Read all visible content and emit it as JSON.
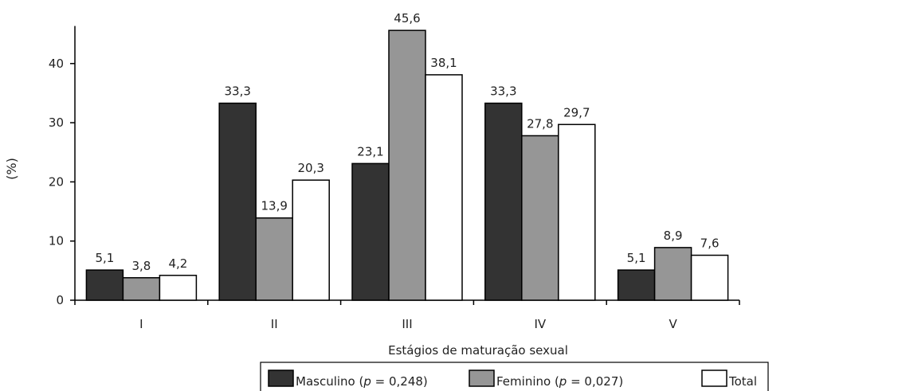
{
  "chart_data": {
    "type": "bar",
    "categories": [
      "I",
      "II",
      "III",
      "IV",
      "V"
    ],
    "series": [
      {
        "key": "masculino",
        "values": [
          5.1,
          33.3,
          23.1,
          33.3,
          5.1
        ],
        "color": "#333333"
      },
      {
        "key": "feminino",
        "values": [
          3.8,
          13.9,
          45.6,
          27.8,
          8.9
        ],
        "color": "#969696"
      },
      {
        "key": "total",
        "values": [
          4.2,
          20.3,
          38.1,
          29.7,
          7.6
        ],
        "color": "#ffffff"
      }
    ],
    "data_labels": [
      [
        "5,1",
        "33,3",
        "23,1",
        "33,3",
        "5,1"
      ],
      [
        "3,8",
        "13,9",
        "45,6",
        "27,8",
        "8,9"
      ],
      [
        "4,2",
        "20,3",
        "38,1",
        "29,7",
        "7,6"
      ]
    ],
    "xlabel": "Estágios de maturação sexual",
    "ylabel": "(%)",
    "ylim": [
      0,
      45
    ],
    "yticks": [
      0,
      10,
      20,
      30,
      40
    ],
    "grid": false,
    "legend": {
      "placement": "bottom-center",
      "items": [
        {
          "pre": "Masculino (",
          "var": "p",
          "post": " = 0,248)"
        },
        {
          "pre": "Feminino (",
          "var": "p",
          "post": " = 0,027)"
        },
        {
          "pre": "Total",
          "var": "",
          "post": ""
        }
      ]
    }
  }
}
